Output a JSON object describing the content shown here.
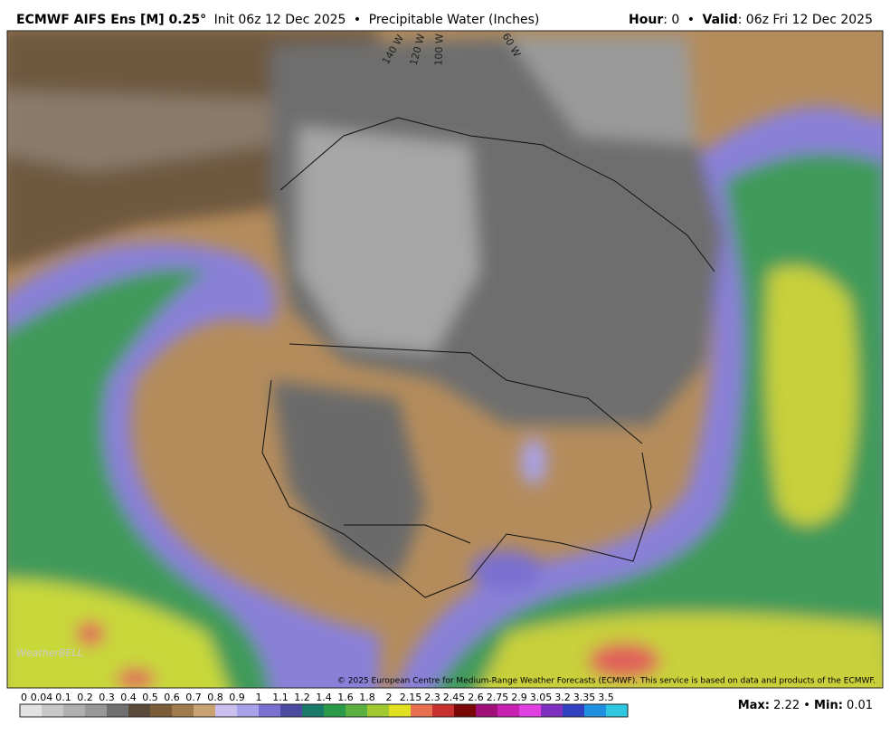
{
  "header": {
    "model": "ECMWF AIFS Ens [M] 0.25°",
    "init": "Init 06z 12 Dec 2025",
    "separator": "•",
    "field": "Precipitable Water (Inches)",
    "hour_label": "Hour",
    "hour": ": 0",
    "valid_label": "Valid",
    "valid": ": 06z Fri 12 Dec 2025"
  },
  "map": {
    "longitudes": [
      "140 W",
      "120 W",
      "100 W",
      "60 W"
    ],
    "logo": "WeatherBELL",
    "copyright": "© 2025 European Centre for Medium-Range Weather Forecasts (ECMWF). This service is based on data and products of the ECMWF."
  },
  "colorbar": {
    "labels": [
      "0",
      "0.04",
      "0.1",
      "0.2",
      "0.3",
      "0.4",
      "0.5",
      "0.6",
      "0.7",
      "0.8",
      "0.9",
      "1",
      "1.1",
      "1.2",
      "1.4",
      "1.6",
      "1.8",
      "2",
      "2.15",
      "2.3",
      "2.45",
      "2.6",
      "2.75",
      "2.9",
      "3.05",
      "3.2",
      "3.35",
      "3.5"
    ],
    "colors": [
      "#e2e2e2",
      "#c8c8c8",
      "#b0b0b0",
      "#989898",
      "#707070",
      "#5a4a3a",
      "#7a5c38",
      "#a07a4c",
      "#c9a271",
      "#cbbfee",
      "#a8a2ea",
      "#7a70d0",
      "#4a4aa0",
      "#1a7a6a",
      "#2a9a4a",
      "#5ab040",
      "#a0c830",
      "#e0e020",
      "#e87050",
      "#c83030",
      "#7a0808",
      "#a0107a",
      "#c820b0",
      "#e040e0",
      "#8030c0",
      "#3040c0",
      "#2090e0",
      "#30c8e0"
    ]
  },
  "footer": {
    "max_label": "Max:",
    "max": "2.22",
    "separator": "•",
    "min_label": "Min:",
    "min": "0.01"
  }
}
